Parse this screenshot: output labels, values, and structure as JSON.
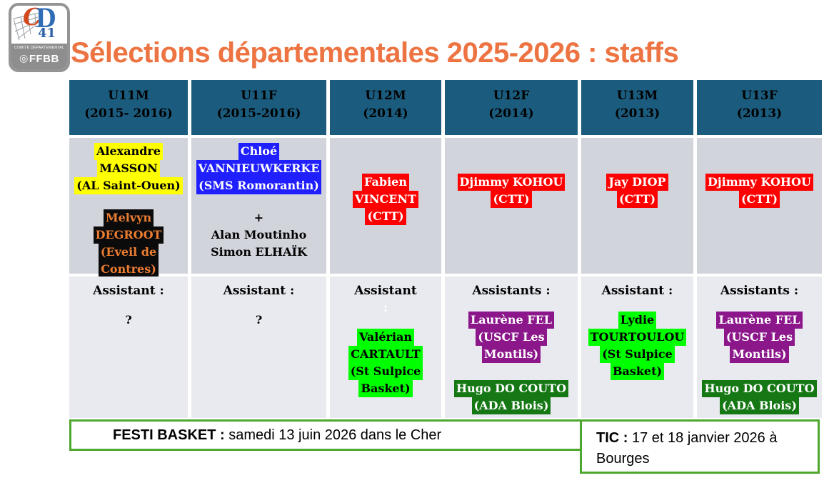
{
  "title": "Sélections départementales 2025-2026 : staffs",
  "title_color": "#ED7442",
  "logo": {
    "c": "C",
    "d": "D",
    "number": "41",
    "committee": "COMITÉ DÉPARTEMENTAL",
    "ffbb": "FFBB",
    "ring_icon": "◎"
  },
  "colors": {
    "header_bg": "#1B5C7E",
    "coach_row_bg": "#D2D4DB",
    "assist_row_bg": "#E9EAEF",
    "footer_border": "#4EA72E"
  },
  "table": {
    "columns": [
      {
        "id": "u11m",
        "header": [
          "U11M",
          "(2015- 2016)"
        ],
        "center_coaches": false,
        "coaches": [
          {
            "lines": [
              "Alexandre",
              "MASSON",
              "(AL Saint-Ouen)"
            ],
            "bg": "#FFFF00",
            "color": "#000000"
          },
          {
            "lines": [
              "Melvyn",
              "DEGROOT",
              "(Eveil de",
              "Contres)"
            ],
            "bg": "#0B0B0B",
            "color": "#ED7D31"
          }
        ],
        "assistant_heading": [
          {
            "text": "Assistant :",
            "color": "#000000"
          }
        ],
        "assistants": [
          {
            "lines": [
              "?"
            ],
            "bg": "none",
            "color": "#000000"
          }
        ]
      },
      {
        "id": "u11f",
        "header": [
          "U11F",
          "(2015-2016)"
        ],
        "center_coaches": false,
        "coaches": [
          {
            "lines": [
              "Chloé",
              "VANNIEUWKERKE",
              "(SMS Romorantin)"
            ],
            "bg": "#1F1FFF",
            "color": "#FFFFFF"
          },
          {
            "lines": [
              "+",
              "Alan Moutinho",
              "Simon ELHAÏK"
            ],
            "bg": "none",
            "color": "#000000"
          }
        ],
        "assistant_heading": [
          {
            "text": "Assistant :",
            "color": "#000000"
          }
        ],
        "assistants": [
          {
            "lines": [
              "?"
            ],
            "bg": "none",
            "color": "#000000"
          }
        ]
      },
      {
        "id": "u12m",
        "header": [
          "U12M",
          "(2014)"
        ],
        "center_coaches": true,
        "coaches": [
          {
            "lines": [
              "Fabien",
              "VINCENT",
              "(CTT)"
            ],
            "bg": "#FF0000",
            "color": "#FFFFFF"
          }
        ],
        "assistant_heading": [
          {
            "text": "Assistant",
            "color": "#000000"
          },
          {
            "text": " :",
            "color": "#FFFFFF"
          }
        ],
        "assistants": [
          {
            "lines": [
              "Valérian",
              "CARTAULT",
              "(St Sulpice",
              "Basket)"
            ],
            "bg": "#00FF00",
            "color": "#000000"
          }
        ]
      },
      {
        "id": "u12f",
        "header": [
          "U12F",
          "(2014)"
        ],
        "center_coaches": true,
        "coaches": [
          {
            "lines": [
              "Djimmy KOHOU",
              "(CTT)"
            ],
            "bg": "#FF0000",
            "color": "#FFFFFF"
          }
        ],
        "assistant_heading": [
          {
            "text": "Assistants :",
            "color": "#000000"
          }
        ],
        "assistants": [
          {
            "lines": [
              "Laurène FEL",
              "(USCF Les",
              "Montils)"
            ],
            "bg": "#8B178B",
            "color": "#FFFFFF"
          },
          {
            "lines": [
              "Hugo DO COUTO",
              "(ADA Blois)"
            ],
            "bg": "#157815",
            "color": "#FFFFFF"
          }
        ]
      },
      {
        "id": "u13m",
        "header": [
          "U13M",
          "(2013)"
        ],
        "center_coaches": true,
        "coaches": [
          {
            "lines": [
              "Jay DIOP",
              "(CTT)"
            ],
            "bg": "#FF0000",
            "color": "#FFFFFF"
          }
        ],
        "assistant_heading": [
          {
            "text": "Assistant :",
            "color": "#000000"
          }
        ],
        "assistants": [
          {
            "lines": [
              "Lydie",
              "TOURTOULOU",
              "(St Sulpice",
              "Basket)"
            ],
            "bg": "#00FF00",
            "color": "#000000"
          }
        ]
      },
      {
        "id": "u13f",
        "header": [
          "U13F",
          "(2013)"
        ],
        "center_coaches": true,
        "coaches": [
          {
            "lines": [
              "Djimmy KOHOU",
              "(CTT)"
            ],
            "bg": "#FF0000",
            "color": "#FFFFFF"
          }
        ],
        "assistant_heading": [
          {
            "text": "Assistants :",
            "color": "#000000"
          }
        ],
        "assistants": [
          {
            "lines": [
              "Laurène FEL",
              "(USCF Les",
              "Montils)"
            ],
            "bg": "#8B178B",
            "color": "#FFFFFF"
          },
          {
            "lines": [
              "Hugo DO COUTO",
              "(ADA Blois)"
            ],
            "bg": "#157815",
            "color": "#FFFFFF"
          }
        ]
      }
    ]
  },
  "footer": {
    "festi": {
      "label": "FESTI BASKET :",
      "text": " samedi 13 juin 2026 dans le Cher"
    },
    "tic": {
      "label": "TIC :",
      "text": " 17 et 18 janvier 2026 à Bourges"
    }
  }
}
